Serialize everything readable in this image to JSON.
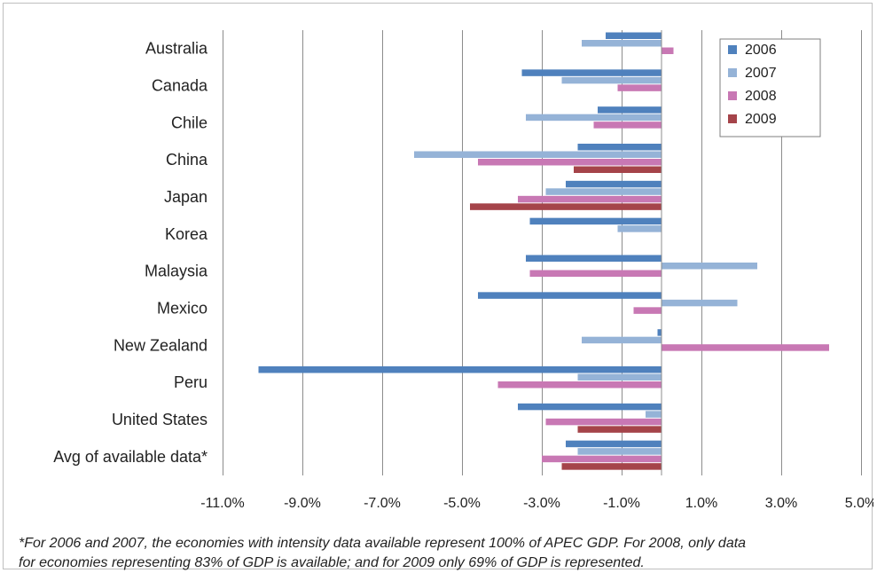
{
  "chart_data": {
    "type": "bar",
    "orientation": "horizontal",
    "categories": [
      "Australia",
      "Canada",
      "Chile",
      "China",
      "Japan",
      "Korea",
      "Malaysia",
      "Mexico",
      "New Zealand",
      "Peru",
      "United States",
      "Avg of available data*"
    ],
    "series": [
      {
        "name": "2006",
        "color": "#4f81bd",
        "values": [
          -1.4,
          -3.5,
          -1.6,
          -2.1,
          -2.4,
          -3.3,
          -3.4,
          -4.6,
          -0.1,
          -10.1,
          -3.6,
          -2.4
        ]
      },
      {
        "name": "2007",
        "color": "#95b3d7",
        "values": [
          -2.0,
          -2.5,
          -3.4,
          -6.2,
          -2.9,
          -1.1,
          2.4,
          1.9,
          -2.0,
          -2.1,
          -0.4,
          -2.1
        ]
      },
      {
        "name": "2008",
        "color": "#c878b4",
        "values": [
          0.3,
          -1.1,
          -1.7,
          -4.6,
          -3.6,
          null,
          -3.3,
          -0.7,
          4.2,
          -4.1,
          -2.9,
          -3.0
        ]
      },
      {
        "name": "2009",
        "color": "#a5444a",
        "values": [
          null,
          null,
          null,
          -2.2,
          -4.8,
          null,
          null,
          null,
          null,
          null,
          -2.1,
          -2.5
        ]
      }
    ],
    "xlim": [
      -11.0,
      5.0
    ],
    "xticks": [
      "-11.0%",
      "-9.0%",
      "-7.0%",
      "-5.0%",
      "-3.0%",
      "-1.0%",
      "1.0%",
      "3.0%",
      "5.0%"
    ],
    "xtick_values": [
      -11,
      -9,
      -7,
      -5,
      -3,
      -1,
      1,
      3,
      5
    ],
    "grid": true,
    "legend_position": "top-right",
    "title": "",
    "xlabel": "",
    "ylabel": ""
  },
  "footnote": {
    "line1": "*For 2006 and 2007, the economies with intensity data available represent 100% of APEC GDP. For 2008, only data",
    "line2": "for economies representing 83% of GDP is available; and for 2009 only 69% of GDP is represented."
  }
}
